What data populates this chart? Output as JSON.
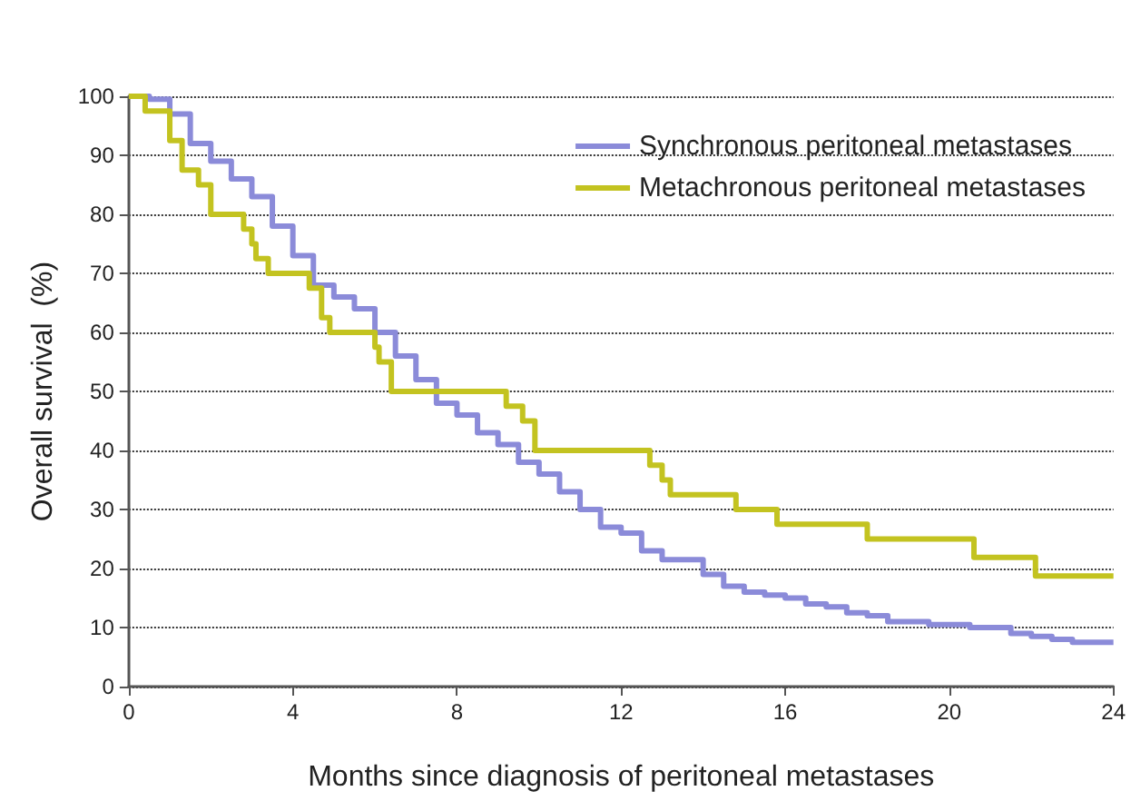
{
  "chart_data": {
    "type": "step",
    "xlabel": "Months since diagnosis of peritoneal metastases",
    "ylabel": "Overall survival  (%)",
    "xlim": [
      0,
      24
    ],
    "xticks": [
      0,
      4,
      8,
      12,
      16,
      20,
      24
    ],
    "ylim": [
      0,
      100
    ],
    "yticks": [
      0,
      10,
      20,
      30,
      40,
      50,
      60,
      70,
      80,
      90,
      100
    ],
    "grid": "y",
    "legend": "top right",
    "marker": "none",
    "line_style": "solid",
    "series": [
      {
        "name": "Synchronous peritoneal metastases",
        "color": "#8b8bd9",
        "x": [
          0,
          0.5,
          1,
          1.5,
          2,
          2.5,
          3,
          3.5,
          4,
          4.5,
          5,
          5.5,
          6,
          6.5,
          7,
          7.5,
          8,
          8.5,
          9,
          9.5,
          10,
          10.5,
          11,
          11.5,
          12,
          12.5,
          13,
          13.5,
          14,
          14.5,
          15,
          15.5,
          16,
          16.5,
          17,
          17.5,
          18,
          18.5,
          19,
          19.5,
          20,
          20.5,
          21,
          21.5,
          22,
          22.5,
          23,
          24
        ],
        "values": [
          100,
          99.5,
          97,
          92,
          89,
          86,
          83,
          78,
          73,
          68,
          66,
          64,
          60,
          56,
          52,
          48,
          46,
          43,
          41,
          38,
          36,
          33,
          30,
          27,
          26,
          23,
          21.5,
          21.5,
          19,
          17,
          16,
          15.5,
          15,
          14,
          13.5,
          12.5,
          12,
          11,
          11,
          10.5,
          10.5,
          10,
          10,
          9,
          8.5,
          8,
          7.5,
          7.5
        ]
      },
      {
        "name": "Metachronous peritoneal metastases",
        "color": "#c3c320",
        "x": [
          0,
          0.4,
          1,
          1.3,
          1.7,
          2,
          2.8,
          3,
          3.1,
          3.4,
          4.4,
          4.7,
          4.9,
          6,
          6.1,
          6.4,
          9.2,
          9.6,
          9.9,
          12.7,
          13,
          13.2,
          14.8,
          15.8,
          18,
          20.6,
          22.1,
          24
        ],
        "values": [
          100,
          97.5,
          92.5,
          87.5,
          85,
          80,
          77.5,
          75,
          72.5,
          70,
          67.5,
          62.5,
          60,
          57.5,
          55,
          50,
          47.5,
          45,
          40,
          37.5,
          35,
          32.5,
          30,
          27.5,
          25,
          21.9,
          18.75,
          18.75
        ]
      }
    ]
  }
}
